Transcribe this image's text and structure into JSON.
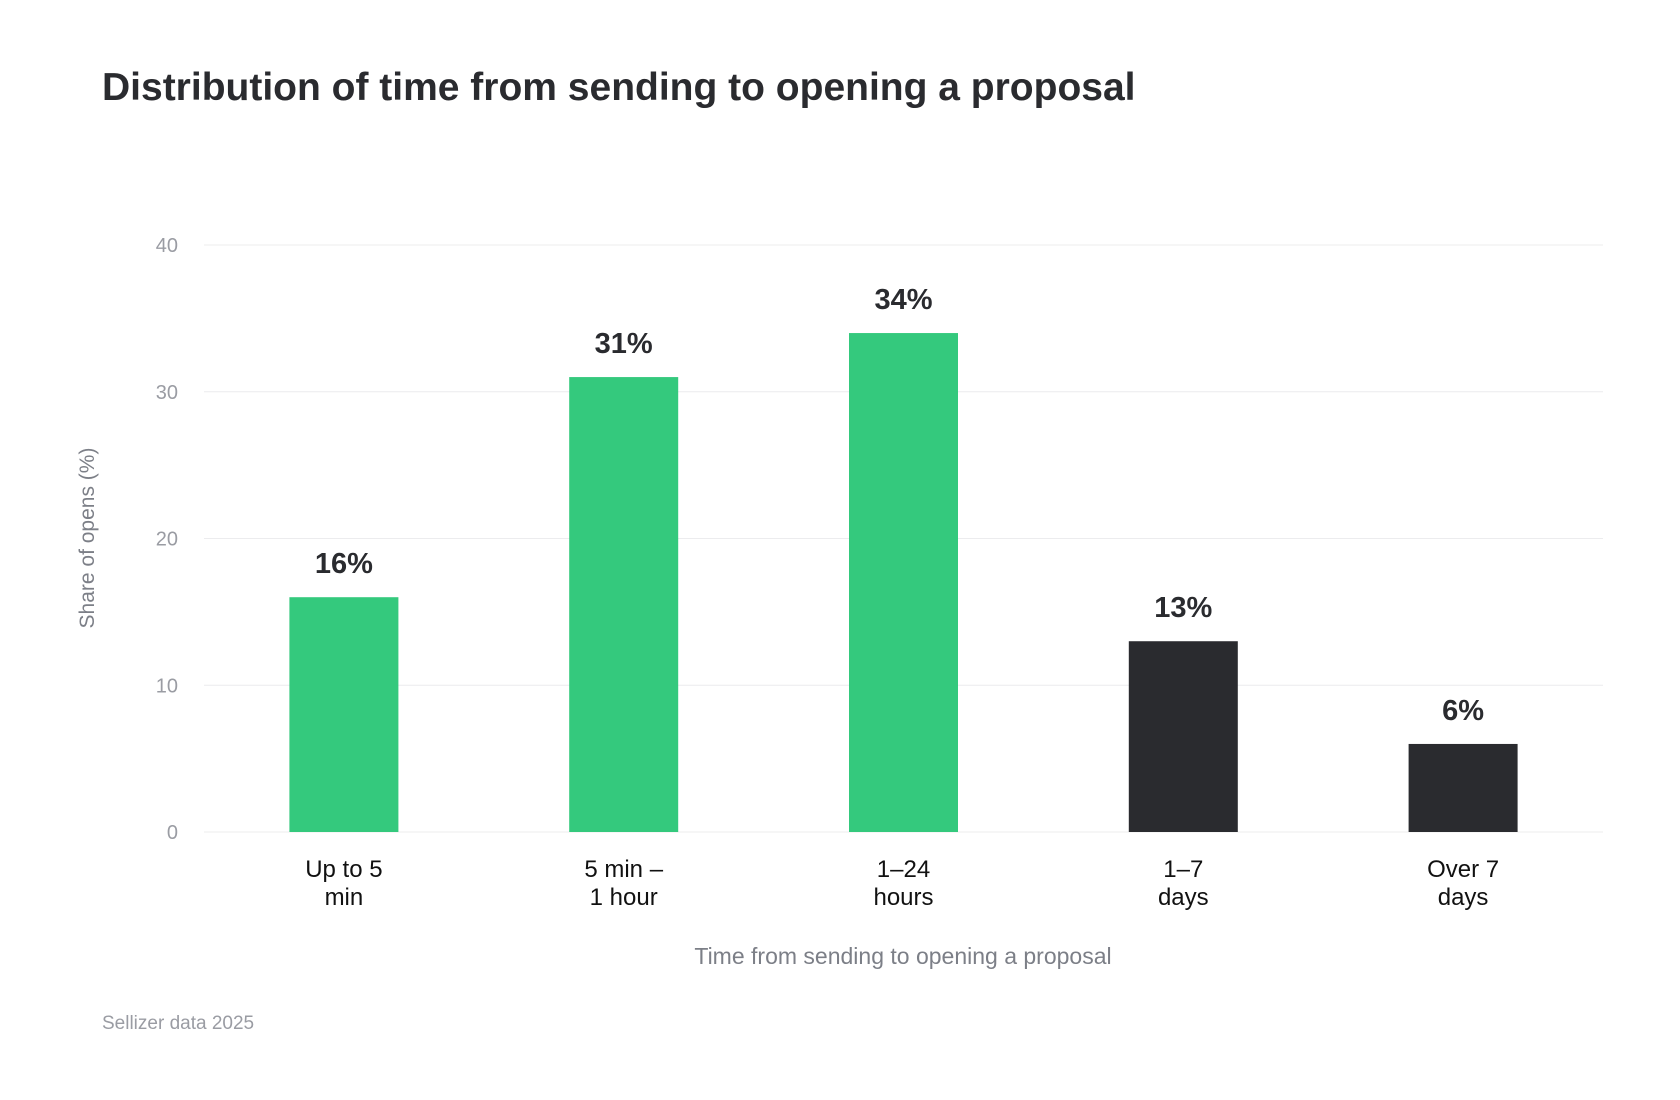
{
  "title": "Distribution of time from sending to opening a proposal",
  "source": "Sellizer data 2025",
  "colors": {
    "green": "#34c97d",
    "dark": "#2a2b2f",
    "grid": "#ececee",
    "axis_text": "#9a9ca3",
    "xlabel_text": "#7c7f87"
  },
  "chart_data": {
    "type": "bar",
    "categories": [
      [
        "Up to 5",
        "min"
      ],
      [
        "5 min –",
        "1 hour"
      ],
      [
        "1–24",
        "hours"
      ],
      [
        "1–7",
        "days"
      ],
      [
        "Over 7",
        "days"
      ]
    ],
    "values": [
      16,
      31,
      34,
      13,
      6
    ],
    "value_labels": [
      "16%",
      "31%",
      "34%",
      "13%",
      "6%"
    ],
    "bar_colors": [
      "#34c97d",
      "#34c97d",
      "#34c97d",
      "#2a2b2f",
      "#2a2b2f"
    ],
    "xlabel": "Time from sending to opening a proposal",
    "ylabel": "Share of opens (%)",
    "ylim": [
      0,
      40
    ],
    "yticks": [
      0,
      10,
      20,
      30,
      40
    ],
    "grid": true,
    "legend": "none"
  }
}
